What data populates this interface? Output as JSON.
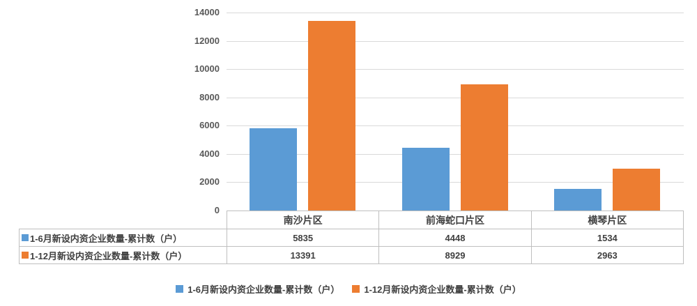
{
  "chart_data": {
    "type": "bar",
    "title": "",
    "xlabel": "",
    "ylabel": "",
    "categories": [
      "南沙片区",
      "前海蛇口片区",
      "横琴片区"
    ],
    "series": [
      {
        "name": "1-6月新设内资企业数量-累计数（户）",
        "color": "#5B9BD5",
        "values": [
          5835,
          4448,
          1534
        ]
      },
      {
        "name": "1-12月新设内资企业数量-累计数（户）",
        "color": "#ED7D31",
        "values": [
          13391,
          8929,
          2963
        ]
      }
    ],
    "ylim": [
      0,
      14000
    ],
    "yticks": [
      "14000",
      "12000",
      "10000",
      "8000",
      "6000",
      "4000",
      "2000",
      "0"
    ],
    "grid": true,
    "gridline_color": "#d9d9d9",
    "legend_position": "bottom",
    "data_table_shown": true
  }
}
